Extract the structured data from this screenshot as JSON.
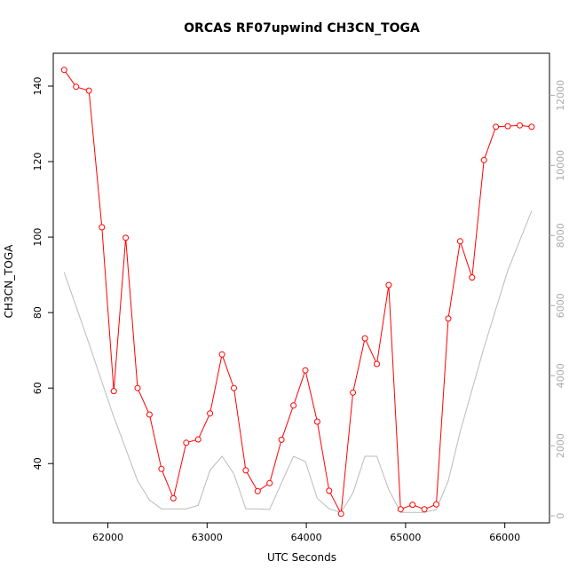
{
  "chart_data": {
    "type": "line",
    "title": "ORCAS RF07upwind CH3CN_TOGA",
    "xlabel": "UTC Seconds",
    "ylabel": "CH3CN_TOGA",
    "xlim": [
      61450,
      66450
    ],
    "ylim": [
      24.3,
      148.7
    ],
    "y2lim": [
      -200,
      13200
    ],
    "x_ticks": [
      62000,
      63000,
      64000,
      65000,
      66000
    ],
    "y_ticks": [
      40,
      60,
      80,
      100,
      120,
      140
    ],
    "y2_ticks": [
      0,
      2000,
      4000,
      6000,
      8000,
      10000,
      12000
    ],
    "grid": false,
    "series": [
      {
        "color": "#ff0000",
        "marker": "open-circle",
        "axis": "left",
        "x": [
          61560,
          61680,
          61810,
          61940,
          62060,
          62180,
          62300,
          62420,
          62540,
          62660,
          62790,
          62910,
          63030,
          63150,
          63270,
          63390,
          63510,
          63630,
          63750,
          63870,
          63990,
          64110,
          64230,
          64350,
          64470,
          64590,
          64710,
          64830,
          64950,
          65070,
          65190,
          65310,
          65430,
          65550,
          65670,
          65790,
          65910,
          66030,
          66150,
          66270
        ],
        "values": [
          144.3,
          139.8,
          138.8,
          102.6,
          59.2,
          99.8,
          60.0,
          53.0,
          38.6,
          30.8,
          45.5,
          46.4,
          53.3,
          68.9,
          60.0,
          38.2,
          32.7,
          34.8,
          46.3,
          55.4,
          64.7,
          51.1,
          32.8,
          26.7,
          58.8,
          73.2,
          66.4,
          87.3,
          27.9,
          29.1,
          27.9,
          29.2,
          78.4,
          98.9,
          89.3,
          120.4,
          129.2,
          129.4,
          129.6,
          129.2
        ]
      },
      {
        "color": "#bbbbbb",
        "marker": "none",
        "axis": "right",
        "x": [
          61560,
          61800,
          62050,
          62300,
          62420,
          62540,
          62660,
          62790,
          62910,
          63030,
          63150,
          63270,
          63390,
          63510,
          63630,
          63870,
          63990,
          64110,
          64230,
          64350,
          64470,
          64590,
          64710,
          64830,
          64950,
          65070,
          65190,
          65310,
          65430,
          65550,
          65790,
          66030,
          66270
        ],
        "values": [
          6950,
          5000,
          2900,
          1000,
          450,
          200,
          200,
          200,
          300,
          1300,
          1700,
          1200,
          200,
          200,
          180,
          1700,
          1550,
          500,
          200,
          100,
          650,
          1700,
          1700,
          750,
          100,
          100,
          100,
          180,
          1000,
          2400,
          4800,
          7000,
          8700
        ]
      }
    ]
  }
}
